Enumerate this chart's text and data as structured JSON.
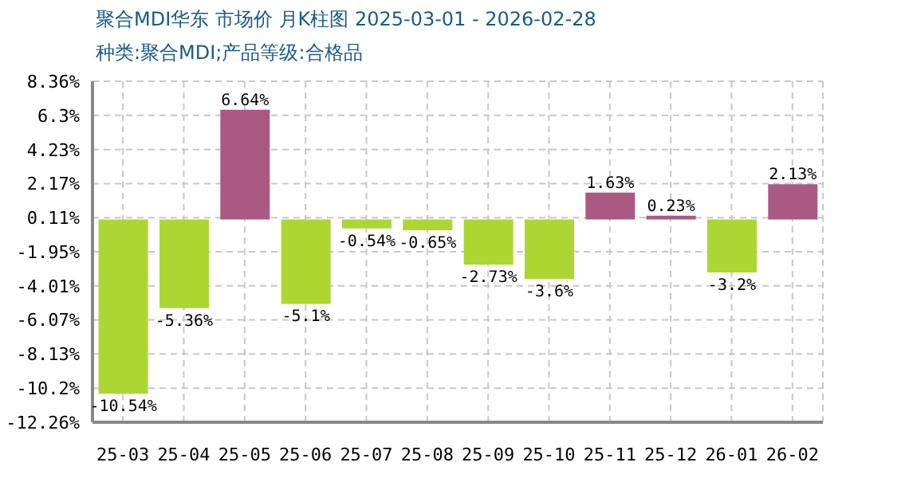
{
  "chart_data": {
    "type": "bar",
    "title": "聚合MDI华东 市场价 月K柱图 2025-03-01 - 2026-02-28",
    "subtitle": "种类:聚合MDI;产品等级:合格品",
    "categories": [
      "25-03",
      "25-04",
      "25-05",
      "25-06",
      "25-07",
      "25-08",
      "25-09",
      "25-10",
      "25-11",
      "25-12",
      "26-01",
      "26-02"
    ],
    "values": [
      -10.54,
      -5.36,
      6.64,
      -5.1,
      -0.54,
      -0.65,
      -2.73,
      -3.6,
      1.63,
      0.23,
      -3.2,
      2.13
    ],
    "colors": [
      "#add633",
      "#add633",
      "#aa5a82",
      "#add633",
      "#add633",
      "#add633",
      "#add633",
      "#add633",
      "#aa5a82",
      "#aa5a82",
      "#add633",
      "#aa5a82"
    ],
    "value_labels": [
      "-10.54%",
      "-5.36%",
      "6.64%",
      "-5.1%",
      "-0.54%",
      "-0.65%",
      "-2.73%",
      "-3.6%",
      "1.63%",
      "0.23%",
      "-3.2%",
      "2.13%"
    ],
    "ylim": [
      -12.26,
      8.36
    ],
    "yticks": [
      {
        "value": 8.36,
        "label": "8.36%"
      },
      {
        "value": 6.3,
        "label": "6.3%"
      },
      {
        "value": 4.23,
        "label": "4.23%"
      },
      {
        "value": 2.17,
        "label": "2.17%"
      },
      {
        "value": 0.11,
        "label": "0.11%"
      },
      {
        "value": -1.95,
        "label": "-1.95%"
      },
      {
        "value": -4.01,
        "label": "-4.01%"
      },
      {
        "value": -6.07,
        "label": "-6.07%"
      },
      {
        "value": -8.13,
        "label": "-8.13%"
      },
      {
        "value": -10.2,
        "label": "-10.2%"
      },
      {
        "value": -12.26,
        "label": "-12.26%"
      }
    ],
    "grid": true,
    "legend": false
  }
}
